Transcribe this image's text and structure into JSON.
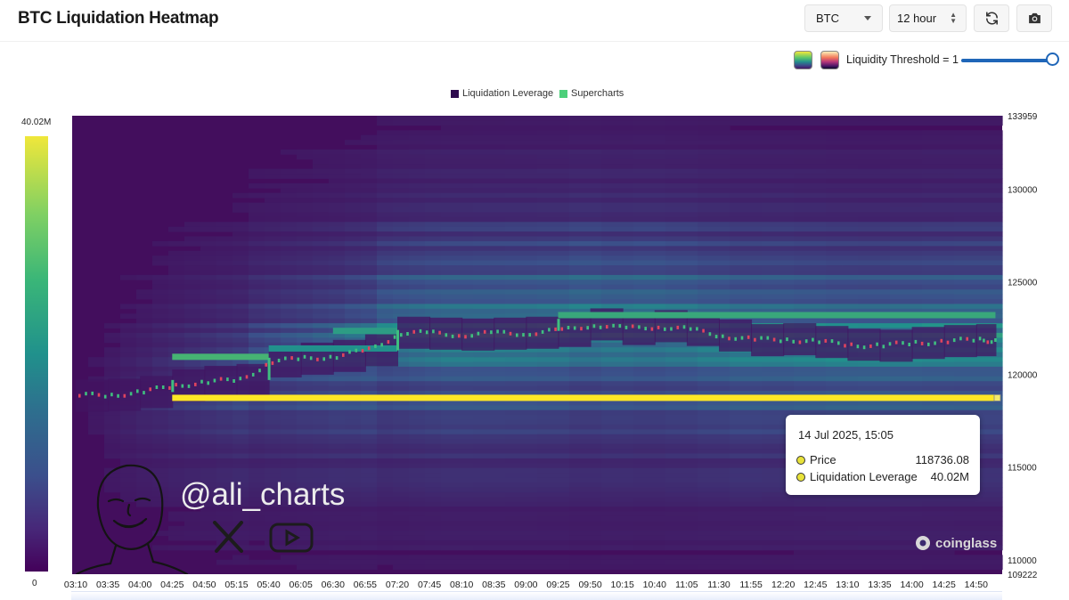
{
  "header": {
    "title": "BTC Liquidation Heatmap",
    "coin_select": "BTC",
    "range_select": "12 hour"
  },
  "controls": {
    "threshold_label": "Liquidity Threshold = 1",
    "threshold_value": 1,
    "palettes": [
      "viridis",
      "magma"
    ],
    "icons": [
      "refresh-icon",
      "camera-icon"
    ]
  },
  "legend": {
    "items": [
      {
        "label": "Liquidation Leverage",
        "color": "#2d0a4e"
      },
      {
        "label": "Supercharts",
        "color": "#4ccf7a"
      }
    ]
  },
  "colorbar": {
    "max_label": "40.02M",
    "min_label": "0"
  },
  "tooltip": {
    "date": "14 Jul 2025, 15:05",
    "rows": [
      {
        "label": "Price",
        "value": "118736.08"
      },
      {
        "label": "Liquidation Leverage",
        "value": "40.02M"
      }
    ]
  },
  "watermark": {
    "handle": "@ali_charts",
    "logo": "coinglass"
  },
  "chart_data": {
    "type": "heatmap",
    "title": "BTC Liquidation Heatmap",
    "colorscale": "viridis",
    "value_range": [
      0,
      40020000
    ],
    "y_axis": {
      "top_label": "133959",
      "bottom_label": "109222",
      "ylim": [
        109222,
        133959
      ],
      "ticks": [
        "130000",
        "125000",
        "120000",
        "115000",
        "110000"
      ]
    },
    "x_axis": {
      "ticks": [
        "03:10",
        "03:35",
        "04:00",
        "04:25",
        "04:50",
        "05:15",
        "05:40",
        "06:05",
        "06:30",
        "06:55",
        "07:20",
        "07:45",
        "08:10",
        "08:35",
        "09:00",
        "09:25",
        "09:50",
        "10:15",
        "10:40",
        "11:05",
        "11:30",
        "11:55",
        "12:20",
        "12:45",
        "13:10",
        "13:35",
        "14:00",
        "14:25",
        "14:50"
      ]
    },
    "price_series": {
      "x": [
        "03:10",
        "03:35",
        "04:00",
        "04:25",
        "04:50",
        "05:15",
        "05:40",
        "06:05",
        "06:30",
        "06:55",
        "07:20",
        "07:45",
        "08:10",
        "08:35",
        "09:00",
        "09:25",
        "09:50",
        "10:15",
        "10:40",
        "11:05",
        "11:30",
        "11:55",
        "12:20",
        "12:45",
        "13:10",
        "13:35",
        "14:00",
        "14:25",
        "14:50",
        "15:05"
      ],
      "y": [
        118850,
        118900,
        119050,
        119400,
        119600,
        119700,
        120700,
        120850,
        121000,
        121300,
        122250,
        122200,
        122150,
        122200,
        122250,
        122350,
        122700,
        122450,
        122600,
        122400,
        122100,
        121850,
        121900,
        121750,
        121600,
        121550,
        121700,
        121800,
        121850,
        121850
      ]
    },
    "bands": [
      {
        "price": 118736,
        "intensity": 1.0,
        "from": "04:25",
        "to": "15:05"
      },
      {
        "price": 120950,
        "intensity": 0.65,
        "from": "04:25",
        "to": "05:40"
      },
      {
        "price": 123200,
        "intensity": 0.6,
        "from": "09:25",
        "to": "15:05"
      },
      {
        "price": 122350,
        "intensity": 0.55,
        "from": "06:30",
        "to": "07:20"
      },
      {
        "price": 121400,
        "intensity": 0.5,
        "from": "05:40",
        "to": "07:20"
      }
    ],
    "grid": false
  }
}
